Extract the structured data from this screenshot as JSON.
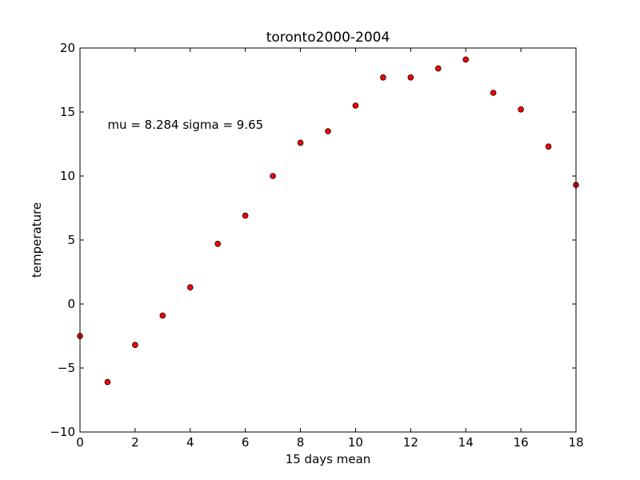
{
  "chart_data": {
    "type": "scatter",
    "title": "toronto2000-2004",
    "xlabel": "15 days mean",
    "ylabel": "temperature",
    "xlim": [
      0,
      18
    ],
    "ylim": [
      -10,
      20
    ],
    "xticks": [
      0,
      2,
      4,
      6,
      8,
      10,
      12,
      14,
      16,
      18
    ],
    "yticks": [
      -10,
      -5,
      0,
      5,
      10,
      15,
      20
    ],
    "xtick_labels": [
      "0",
      "2",
      "4",
      "6",
      "8",
      "10",
      "12",
      "14",
      "16",
      "18"
    ],
    "ytick_labels": [
      "−10",
      "−5",
      "0",
      "5",
      "10",
      "15",
      "20"
    ],
    "grid": false,
    "marker_color": "#ff0000",
    "annotation": {
      "text": "mu = 8.284 sigma = 9.65",
      "x": 1,
      "y": 14
    },
    "points": [
      {
        "x": 0,
        "y": -2.5
      },
      {
        "x": 1,
        "y": -6.1
      },
      {
        "x": 2,
        "y": -3.2
      },
      {
        "x": 3,
        "y": -0.9
      },
      {
        "x": 4,
        "y": 1.3
      },
      {
        "x": 5,
        "y": 4.7
      },
      {
        "x": 6,
        "y": 6.9
      },
      {
        "x": 7,
        "y": 10.0
      },
      {
        "x": 8,
        "y": 12.6
      },
      {
        "x": 9,
        "y": 13.5
      },
      {
        "x": 10,
        "y": 15.5
      },
      {
        "x": 11,
        "y": 17.7
      },
      {
        "x": 12,
        "y": 17.7
      },
      {
        "x": 13,
        "y": 18.4
      },
      {
        "x": 14,
        "y": 19.1
      },
      {
        "x": 15,
        "y": 16.5
      },
      {
        "x": 16,
        "y": 15.2
      },
      {
        "x": 17,
        "y": 12.3
      },
      {
        "x": 18,
        "y": 9.3
      }
    ]
  }
}
